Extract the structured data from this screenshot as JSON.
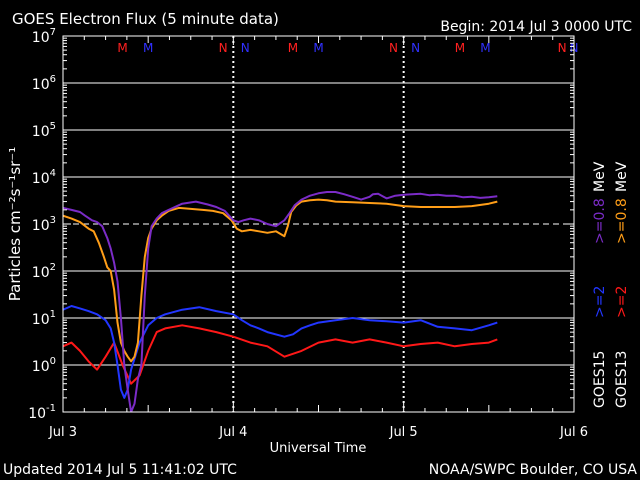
{
  "chart_data": {
    "type": "line",
    "title": "GOES Electron Flux (5 minute data)",
    "begin_label": "Begin: 2014 Jul 3 0000 UTC",
    "xlabel": "Universal Time",
    "ylabel": "Particles cm⁻²s⁻¹sr⁻¹",
    "y_scale": "log",
    "ylim": [
      0.1,
      10000000
    ],
    "y_ticks": [
      {
        "value": 0.1,
        "base": "10",
        "exp": "-1"
      },
      {
        "value": 1,
        "base": "10",
        "exp": "0"
      },
      {
        "value": 10,
        "base": "10",
        "exp": "1"
      },
      {
        "value": 100,
        "base": "10",
        "exp": "2"
      },
      {
        "value": 1000,
        "base": "10",
        "exp": "3"
      },
      {
        "value": 10000,
        "base": "10",
        "exp": "4"
      },
      {
        "value": 100000,
        "base": "10",
        "exp": "5"
      },
      {
        "value": 1000000,
        "base": "10",
        "exp": "6"
      },
      {
        "value": 10000000,
        "base": "10",
        "exp": "7"
      }
    ],
    "xlim": [
      0,
      3
    ],
    "x_unit": "days since 2014 Jul 3 0000 UTC",
    "x_ticks": [
      {
        "value": 0,
        "label": "Jul 3"
      },
      {
        "value": 1,
        "label": "Jul 4"
      },
      {
        "value": 2,
        "label": "Jul 5"
      },
      {
        "value": 3,
        "label": "Jul 6"
      }
    ],
    "grid": "horizontal decades, dotted vertical day lines",
    "threshold_line": {
      "value": 1000,
      "style": "dashed"
    },
    "markers": [
      {
        "x": 0.35,
        "label": "M",
        "color": "#ff2020"
      },
      {
        "x": 0.5,
        "label": "M",
        "color": "#3030ff"
      },
      {
        "x": 0.94,
        "label": "N",
        "color": "#ff2020"
      },
      {
        "x": 1.07,
        "label": "N",
        "color": "#3030ff"
      },
      {
        "x": 1.35,
        "label": "M",
        "color": "#ff2020"
      },
      {
        "x": 1.5,
        "label": "M",
        "color": "#3030ff"
      },
      {
        "x": 1.94,
        "label": "N",
        "color": "#ff2020"
      },
      {
        "x": 2.07,
        "label": "N",
        "color": "#3030ff"
      },
      {
        "x": 2.33,
        "label": "M",
        "color": "#ff2020"
      },
      {
        "x": 2.48,
        "label": "M",
        "color": "#3030ff"
      },
      {
        "x": 2.93,
        "label": "N",
        "color": "#ff2020"
      },
      {
        "x": 3.0,
        "label": "N",
        "color": "#3030ff"
      }
    ],
    "right_labels": {
      "goes15_label": "GOES15",
      "goes13_label": "GOES13",
      "g15_2mev": ">=2",
      "g13_2mev": ">=2",
      "g15_08mev": ">=0.8",
      "g13_08mev": ">=0.8",
      "mev_unit_1": "MeV",
      "mev_unit_2": "MeV"
    },
    "series": [
      {
        "name": "GOES15 >=0.8 MeV",
        "color": "#7b2cc7",
        "x": [
          0,
          0.05,
          0.1,
          0.13,
          0.17,
          0.2,
          0.23,
          0.26,
          0.28,
          0.3,
          0.32,
          0.34,
          0.36,
          0.38,
          0.4,
          0.42,
          0.44,
          0.46,
          0.48,
          0.5,
          0.52,
          0.55,
          0.58,
          0.62,
          0.7,
          0.78,
          0.85,
          0.9,
          0.95,
          1.0,
          1.03,
          1.06,
          1.1,
          1.15,
          1.2,
          1.25,
          1.3,
          1.33,
          1.36,
          1.4,
          1.45,
          1.5,
          1.55,
          1.6,
          1.65,
          1.7,
          1.75,
          1.8,
          1.82,
          1.85,
          1.9,
          1.95,
          2.0,
          2.05,
          2.1,
          2.15,
          2.2,
          2.25,
          2.3,
          2.35,
          2.4,
          2.45,
          2.5,
          2.55
        ],
        "values": [
          2200,
          2000,
          1800,
          1500,
          1200,
          1100,
          900,
          500,
          300,
          150,
          60,
          10,
          1,
          0.3,
          0.1,
          0.15,
          0.5,
          1,
          30,
          300,
          900,
          1300,
          1700,
          2000,
          2700,
          3000,
          2600,
          2300,
          1900,
          1200,
          1100,
          1200,
          1300,
          1200,
          1000,
          900,
          1200,
          1700,
          2500,
          3300,
          4000,
          4500,
          4800,
          4800,
          4300,
          3800,
          3300,
          3800,
          4300,
          4400,
          3500,
          4000,
          4200,
          4300,
          4400,
          4100,
          4200,
          4000,
          4000,
          3700,
          3800,
          3600,
          3700,
          3900
        ]
      },
      {
        "name": "GOES13 >=0.8 MeV",
        "color": "#ff9e18",
        "x": [
          0,
          0.05,
          0.1,
          0.15,
          0.18,
          0.21,
          0.24,
          0.26,
          0.28,
          0.3,
          0.32,
          0.34,
          0.36,
          0.38,
          0.4,
          0.42,
          0.44,
          0.46,
          0.48,
          0.5,
          0.52,
          0.55,
          0.58,
          0.62,
          0.68,
          0.75,
          0.82,
          0.88,
          0.94,
          0.99,
          1.02,
          1.05,
          1.1,
          1.15,
          1.2,
          1.25,
          1.3,
          1.32,
          1.34,
          1.37,
          1.4,
          1.45,
          1.5,
          1.55,
          1.6,
          1.7,
          1.8,
          1.9,
          2.0,
          2.1,
          2.2,
          2.3,
          2.4,
          2.5,
          2.55
        ],
        "values": [
          1500,
          1300,
          1100,
          800,
          700,
          400,
          200,
          120,
          100,
          40,
          8,
          3,
          2,
          1.5,
          1.2,
          1.5,
          3,
          30,
          200,
          500,
          800,
          1200,
          1500,
          1900,
          2200,
          2100,
          2000,
          1900,
          1700,
          1200,
          800,
          700,
          750,
          700,
          650,
          700,
          550,
          900,
          1800,
          2500,
          3000,
          3200,
          3300,
          3200,
          3000,
          2900,
          2800,
          2700,
          2400,
          2300,
          2300,
          2300,
          2400,
          2700,
          3000
        ]
      },
      {
        "name": "GOES15 >=2 MeV",
        "color": "#2236ff",
        "x": [
          0,
          0.05,
          0.1,
          0.15,
          0.2,
          0.25,
          0.28,
          0.3,
          0.32,
          0.34,
          0.36,
          0.38,
          0.4,
          0.45,
          0.5,
          0.55,
          0.6,
          0.7,
          0.8,
          0.9,
          1.0,
          1.05,
          1.1,
          1.15,
          1.2,
          1.3,
          1.35,
          1.4,
          1.45,
          1.5,
          1.6,
          1.7,
          1.8,
          1.9,
          2.0,
          2.1,
          2.2,
          2.3,
          2.4,
          2.5,
          2.55
        ],
        "values": [
          15,
          18,
          16,
          14,
          12,
          9,
          6,
          3,
          1,
          0.3,
          0.2,
          0.3,
          0.8,
          3,
          7,
          10,
          12,
          15,
          17,
          14,
          12,
          9,
          7,
          6,
          5,
          4,
          4.5,
          6,
          7,
          8,
          9,
          10,
          9,
          8.5,
          8,
          9,
          6.5,
          6,
          5.5,
          7,
          8
        ]
      },
      {
        "name": "GOES13 >=2 MeV",
        "color": "#ff1818",
        "x": [
          0,
          0.05,
          0.1,
          0.15,
          0.2,
          0.25,
          0.3,
          0.35,
          0.4,
          0.45,
          0.5,
          0.55,
          0.6,
          0.7,
          0.8,
          0.9,
          1.0,
          1.1,
          1.2,
          1.3,
          1.4,
          1.5,
          1.6,
          1.7,
          1.8,
          1.9,
          2.0,
          2.1,
          2.2,
          2.3,
          2.4,
          2.5,
          2.55
        ],
        "values": [
          2.5,
          3,
          2,
          1.2,
          0.8,
          1.5,
          3,
          1,
          0.4,
          0.6,
          2,
          5,
          6,
          7,
          6,
          5,
          4,
          3,
          2.5,
          1.5,
          2,
          3,
          3.5,
          3,
          3.5,
          3,
          2.5,
          2.8,
          3,
          2.5,
          2.8,
          3,
          3.5
        ]
      }
    ]
  },
  "footer": {
    "updated": "Updated 2014 Jul  5 11:41:02 UTC",
    "source": "NOAA/SWPC Boulder, CO USA"
  }
}
